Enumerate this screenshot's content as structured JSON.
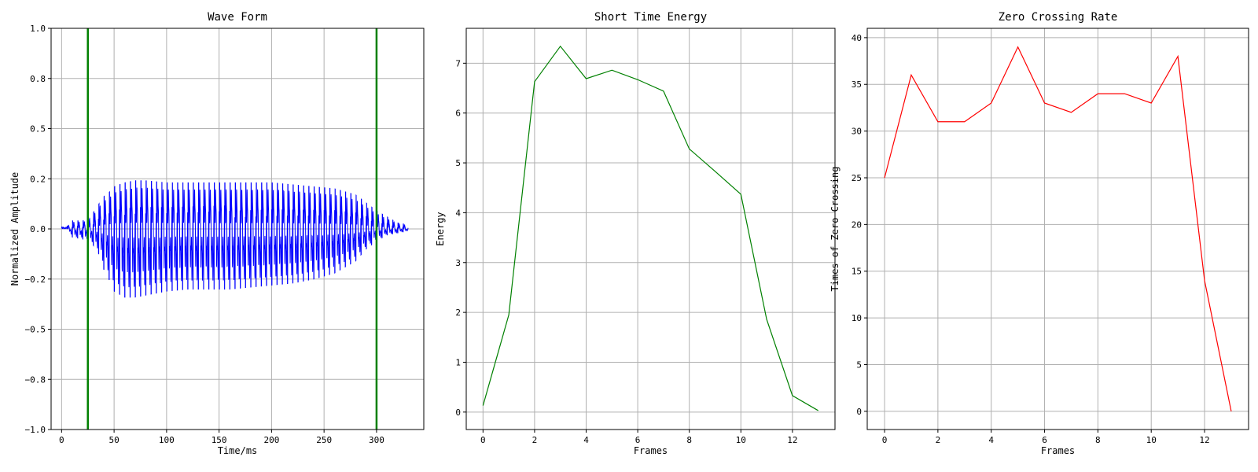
{
  "chart_data": [
    {
      "type": "line",
      "title": "Wave Form",
      "xlabel": "Time/ms",
      "ylabel": "Normalized Amplitude",
      "xlim": [
        -10,
        345
      ],
      "ylim": [
        -1.0,
        1.0
      ],
      "xticks": [
        0,
        50,
        100,
        150,
        200,
        250,
        300
      ],
      "xtick_labels": [
        "0",
        "50",
        "100",
        "150",
        "200",
        "250",
        "300"
      ],
      "yticks": [
        -1.0,
        -0.75,
        -0.5,
        -0.25,
        0,
        0.25,
        0.5,
        0.75,
        1.0
      ],
      "ytick_labels": [
        "−1.0",
        "−0.8",
        "−0.5",
        "−0.2",
        "0.0",
        "0.2",
        "0.5",
        "0.8",
        "1.0"
      ],
      "grid": true,
      "series": [
        {
          "color": "#0000ff",
          "description": "approximate speech waveform envelope (peak amplitude per time window)",
          "time_ms": [
            0,
            5,
            10,
            20,
            25,
            30,
            35,
            40,
            45,
            50,
            60,
            70,
            80,
            100,
            120,
            140,
            160,
            180,
            200,
            220,
            240,
            260,
            280,
            290,
            300,
            310,
            320,
            330
          ],
          "max": [
            0.01,
            0.01,
            0.04,
            0.04,
            0.05,
            0.08,
            0.12,
            0.16,
            0.18,
            0.21,
            0.23,
            0.24,
            0.24,
            0.23,
            0.23,
            0.23,
            0.23,
            0.23,
            0.23,
            0.22,
            0.21,
            0.2,
            0.17,
            0.13,
            0.09,
            0.06,
            0.03,
            0.02
          ],
          "min": [
            0.01,
            0.01,
            -0.04,
            -0.05,
            -0.06,
            -0.08,
            -0.12,
            -0.2,
            -0.25,
            -0.31,
            -0.34,
            -0.34,
            -0.33,
            -0.31,
            -0.3,
            -0.3,
            -0.3,
            -0.29,
            -0.28,
            -0.27,
            -0.25,
            -0.22,
            -0.16,
            -0.1,
            -0.06,
            -0.03,
            -0.02,
            -0.01
          ]
        }
      ],
      "vlines": [
        {
          "x": 25,
          "color": "#008000"
        },
        {
          "x": 300,
          "color": "#008000"
        }
      ]
    },
    {
      "type": "line",
      "title": "Short Time Energy",
      "xlabel": "Frames",
      "ylabel": "Energy",
      "xlim": [
        -0.65,
        13.65
      ],
      "ylim": [
        -0.35,
        7.7
      ],
      "xticks": [
        0,
        2,
        4,
        6,
        8,
        10,
        12
      ],
      "xtick_labels": [
        "0",
        "2",
        "4",
        "6",
        "8",
        "10",
        "12"
      ],
      "yticks": [
        0,
        1,
        2,
        3,
        4,
        5,
        6,
        7
      ],
      "ytick_labels": [
        "0",
        "1",
        "2",
        "3",
        "4",
        "5",
        "6",
        "7"
      ],
      "grid": true,
      "series": [
        {
          "color": "#008000",
          "x": [
            0,
            1,
            2,
            3,
            4,
            5,
            6,
            7,
            8,
            9,
            10,
            11,
            12,
            13
          ],
          "values": [
            0.13,
            1.95,
            6.63,
            7.34,
            6.69,
            6.86,
            6.67,
            6.44,
            5.28,
            4.83,
            4.37,
            1.86,
            0.33,
            0.03
          ]
        }
      ]
    },
    {
      "type": "line",
      "title": "Zero Crossing Rate",
      "xlabel": "Frames",
      "ylabel": "Times of Zero Crossing",
      "xlim": [
        -0.65,
        13.65
      ],
      "ylim": [
        -1.95,
        41.0
      ],
      "xticks": [
        0,
        2,
        4,
        6,
        8,
        10,
        12
      ],
      "xtick_labels": [
        "0",
        "2",
        "4",
        "6",
        "8",
        "10",
        "12"
      ],
      "yticks": [
        0,
        5,
        10,
        15,
        20,
        25,
        30,
        35,
        40
      ],
      "ytick_labels": [
        "0",
        "5",
        "10",
        "15",
        "20",
        "25",
        "30",
        "35",
        "40"
      ],
      "grid": true,
      "series": [
        {
          "color": "#ff0000",
          "x": [
            0,
            1,
            2,
            3,
            4,
            5,
            6,
            7,
            8,
            9,
            10,
            11,
            12,
            13
          ],
          "values": [
            25,
            36,
            31,
            31,
            33,
            39,
            33,
            32,
            34,
            34,
            33,
            38,
            14,
            0
          ]
        }
      ]
    }
  ]
}
